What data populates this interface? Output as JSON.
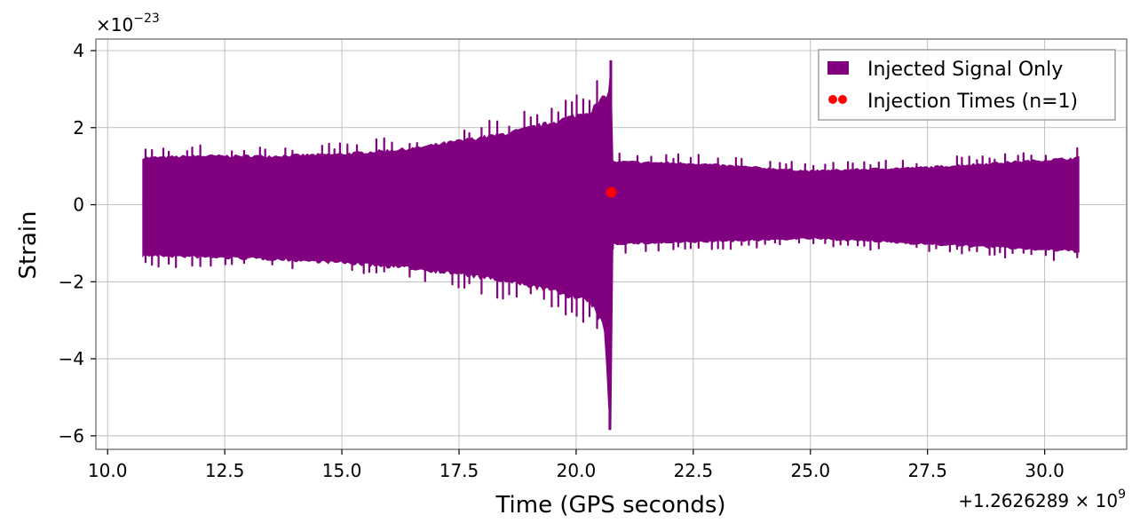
{
  "chart_data": {
    "type": "line",
    "xlabel": "Time (GPS seconds)",
    "ylabel": "Strain",
    "x_offset_text": "+1.2626289 × 10^9",
    "x_offset_main": "+1.2626289 × 10",
    "x_offset_exp": "9",
    "y_scale_text": "×10^−23",
    "y_scale_main": "×10",
    "y_scale_exp": "−23",
    "xlim": [
      9.75,
      31.75
    ],
    "ylim": [
      -6.35,
      4.3
    ],
    "xticks": [
      10.0,
      12.5,
      15.0,
      17.5,
      20.0,
      22.5,
      25.0,
      27.5,
      30.0
    ],
    "xtick_labels": [
      "10.0",
      "12.5",
      "15.0",
      "17.5",
      "20.0",
      "22.5",
      "25.0",
      "27.5",
      "30.0"
    ],
    "yticks": [
      -6,
      -4,
      -2,
      0,
      2,
      4
    ],
    "ytick_labels": [
      "−6",
      "−4",
      "−2",
      "0",
      "2",
      "4"
    ],
    "grid": true,
    "legend_position": "top-right",
    "series": [
      {
        "name": "Injected Signal Only",
        "color": "#800080",
        "kind": "filled-band-signal",
        "x_range": [
          10.75,
          30.75
        ],
        "upper_envelope": [
          [
            10.75,
            1.25
          ],
          [
            12.0,
            1.3
          ],
          [
            13.5,
            1.3
          ],
          [
            15.0,
            1.35
          ],
          [
            16.5,
            1.5
          ],
          [
            17.5,
            1.7
          ],
          [
            18.5,
            1.9
          ],
          [
            19.5,
            2.2
          ],
          [
            20.3,
            2.5
          ],
          [
            20.7,
            3.0
          ],
          [
            20.74,
            3.75
          ]
        ],
        "lower_envelope": [
          [
            10.75,
            -1.35
          ],
          [
            12.0,
            -1.4
          ],
          [
            13.5,
            -1.45
          ],
          [
            15.0,
            -1.55
          ],
          [
            16.5,
            -1.7
          ],
          [
            17.5,
            -1.85
          ],
          [
            18.5,
            -2.05
          ],
          [
            19.5,
            -2.3
          ],
          [
            20.3,
            -2.6
          ],
          [
            20.6,
            -3.3
          ],
          [
            20.72,
            -5.85
          ]
        ],
        "post_merger_upper": [
          [
            20.8,
            1.15
          ],
          [
            22.5,
            1.1
          ],
          [
            25.0,
            0.9
          ],
          [
            27.5,
            1.0
          ],
          [
            30.75,
            1.25
          ]
        ],
        "post_merger_lower": [
          [
            20.8,
            -1.05
          ],
          [
            22.5,
            -1.0
          ],
          [
            25.0,
            -0.9
          ],
          [
            27.5,
            -1.05
          ],
          [
            30.75,
            -1.25
          ]
        ]
      },
      {
        "name": "Injection Times (n=1)",
        "color": "#ff0000",
        "kind": "scatter",
        "points": [
          [
            20.75,
            0.32
          ]
        ]
      }
    ]
  }
}
